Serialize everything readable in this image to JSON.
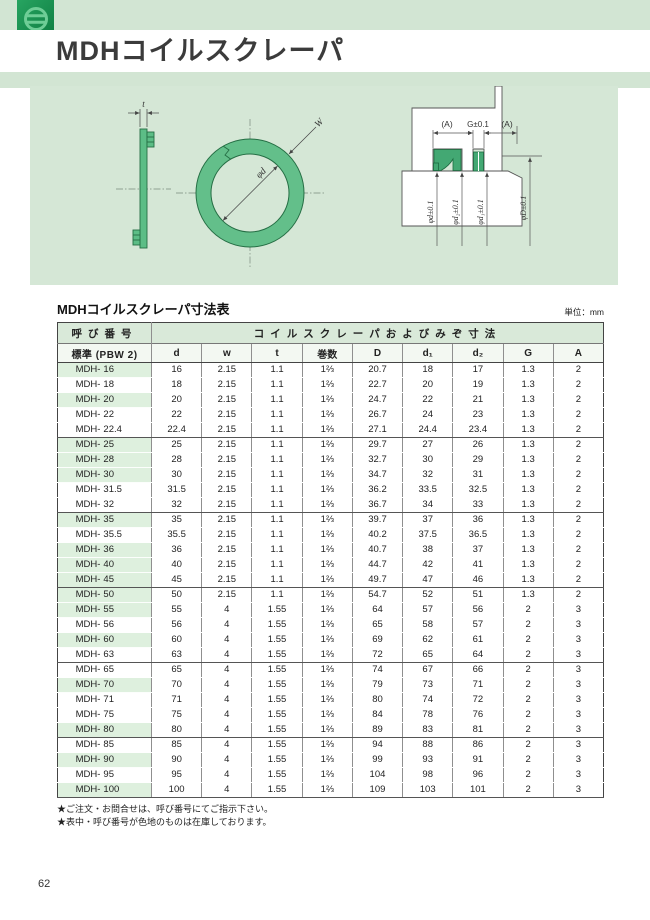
{
  "header": {
    "title": "MDHコイルスクレーパ"
  },
  "diagram": {
    "side_view": {
      "thickness_label": "t"
    },
    "ring_view": {
      "inner_dia_label": "φd",
      "width_label": "W"
    },
    "section_view": {
      "dim_a_left": "(A)",
      "dim_g": "G±0.1",
      "dim_a_right": "(A)",
      "dia_d": "φd±0.1",
      "dia_d2": "φd₂±0.1",
      "dia_d1": "φd₁±0.1",
      "dia_D": "φD±0.1"
    }
  },
  "table": {
    "title": "MDHコイルスクレーパ寸法表",
    "unit": "単位：mm",
    "header_group_left": "呼び番号",
    "header_group_right": "コイルスクレーパおよびみぞ寸法",
    "subheaders": [
      "標準 (PBW 2)",
      "d",
      "w",
      "t",
      "巻数",
      "D",
      "d₁",
      "d₂",
      "G",
      "A"
    ],
    "part_prefix": "MDH-",
    "groups": [
      {
        "rows": [
          {
            "size": "16",
            "stock": true,
            "values": [
              "16",
              "2.15",
              "1.1",
              "1⅔",
              "20.7",
              "18",
              "17",
              "1.3",
              "2"
            ]
          },
          {
            "size": "18",
            "stock": false,
            "values": [
              "18",
              "2.15",
              "1.1",
              "1⅔",
              "22.7",
              "20",
              "19",
              "1.3",
              "2"
            ]
          },
          {
            "size": "20",
            "stock": true,
            "values": [
              "20",
              "2.15",
              "1.1",
              "1⅔",
              "24.7",
              "22",
              "21",
              "1.3",
              "2"
            ]
          },
          {
            "size": "22",
            "stock": false,
            "values": [
              "22",
              "2.15",
              "1.1",
              "1⅔",
              "26.7",
              "24",
              "23",
              "1.3",
              "2"
            ]
          },
          {
            "size": "22.4",
            "stock": false,
            "values": [
              "22.4",
              "2.15",
              "1.1",
              "1⅔",
              "27.1",
              "24.4",
              "23.4",
              "1.3",
              "2"
            ]
          }
        ]
      },
      {
        "rows": [
          {
            "size": "25",
            "stock": true,
            "values": [
              "25",
              "2.15",
              "1.1",
              "1⅔",
              "29.7",
              "27",
              "26",
              "1.3",
              "2"
            ]
          },
          {
            "size": "28",
            "stock": true,
            "values": [
              "28",
              "2.15",
              "1.1",
              "1⅔",
              "32.7",
              "30",
              "29",
              "1.3",
              "2"
            ]
          },
          {
            "size": "30",
            "stock": true,
            "values": [
              "30",
              "2.15",
              "1.1",
              "1⅔",
              "34.7",
              "32",
              "31",
              "1.3",
              "2"
            ]
          },
          {
            "size": "31.5",
            "stock": false,
            "values": [
              "31.5",
              "2.15",
              "1.1",
              "1⅔",
              "36.2",
              "33.5",
              "32.5",
              "1.3",
              "2"
            ]
          },
          {
            "size": "32",
            "stock": false,
            "values": [
              "32",
              "2.15",
              "1.1",
              "1⅔",
              "36.7",
              "34",
              "33",
              "1.3",
              "2"
            ]
          }
        ]
      },
      {
        "rows": [
          {
            "size": "35",
            "stock": true,
            "values": [
              "35",
              "2.15",
              "1.1",
              "1⅔",
              "39.7",
              "37",
              "36",
              "1.3",
              "2"
            ]
          },
          {
            "size": "35.5",
            "stock": false,
            "values": [
              "35.5",
              "2.15",
              "1.1",
              "1⅔",
              "40.2",
              "37.5",
              "36.5",
              "1.3",
              "2"
            ]
          },
          {
            "size": "36",
            "stock": true,
            "values": [
              "36",
              "2.15",
              "1.1",
              "1⅔",
              "40.7",
              "38",
              "37",
              "1.3",
              "2"
            ]
          },
          {
            "size": "40",
            "stock": true,
            "values": [
              "40",
              "2.15",
              "1.1",
              "1⅔",
              "44.7",
              "42",
              "41",
              "1.3",
              "2"
            ]
          },
          {
            "size": "45",
            "stock": true,
            "values": [
              "45",
              "2.15",
              "1.1",
              "1⅔",
              "49.7",
              "47",
              "46",
              "1.3",
              "2"
            ]
          }
        ]
      },
      {
        "rows": [
          {
            "size": "50",
            "stock": true,
            "values": [
              "50",
              "2.15",
              "1.1",
              "1⅔",
              "54.7",
              "52",
              "51",
              "1.3",
              "2"
            ]
          },
          {
            "size": "55",
            "stock": true,
            "values": [
              "55",
              "4",
              "1.55",
              "1⅔",
              "64",
              "57",
              "56",
              "2",
              "3"
            ]
          },
          {
            "size": "56",
            "stock": false,
            "values": [
              "56",
              "4",
              "1.55",
              "1⅔",
              "65",
              "58",
              "57",
              "2",
              "3"
            ]
          },
          {
            "size": "60",
            "stock": true,
            "values": [
              "60",
              "4",
              "1.55",
              "1⅔",
              "69",
              "62",
              "61",
              "2",
              "3"
            ]
          },
          {
            "size": "63",
            "stock": false,
            "values": [
              "63",
              "4",
              "1.55",
              "1⅔",
              "72",
              "65",
              "64",
              "2",
              "3"
            ]
          }
        ]
      },
      {
        "rows": [
          {
            "size": "65",
            "stock": false,
            "values": [
              "65",
              "4",
              "1.55",
              "1⅔",
              "74",
              "67",
              "66",
              "2",
              "3"
            ]
          },
          {
            "size": "70",
            "stock": true,
            "values": [
              "70",
              "4",
              "1.55",
              "1⅔",
              "79",
              "73",
              "71",
              "2",
              "3"
            ]
          },
          {
            "size": "71",
            "stock": false,
            "values": [
              "71",
              "4",
              "1.55",
              "1⅔",
              "80",
              "74",
              "72",
              "2",
              "3"
            ]
          },
          {
            "size": "75",
            "stock": false,
            "values": [
              "75",
              "4",
              "1.55",
              "1⅔",
              "84",
              "78",
              "76",
              "2",
              "3"
            ]
          },
          {
            "size": "80",
            "stock": true,
            "values": [
              "80",
              "4",
              "1.55",
              "1⅔",
              "89",
              "83",
              "81",
              "2",
              "3"
            ]
          }
        ]
      },
      {
        "rows": [
          {
            "size": "85",
            "stock": false,
            "values": [
              "85",
              "4",
              "1.55",
              "1⅔",
              "94",
              "88",
              "86",
              "2",
              "3"
            ]
          },
          {
            "size": "90",
            "stock": true,
            "values": [
              "90",
              "4",
              "1.55",
              "1⅔",
              "99",
              "93",
              "91",
              "2",
              "3"
            ]
          },
          {
            "size": "95",
            "stock": false,
            "values": [
              "95",
              "4",
              "1.55",
              "1⅔",
              "104",
              "98",
              "96",
              "2",
              "3"
            ]
          },
          {
            "size": "100",
            "stock": true,
            "values": [
              "100",
              "4",
              "1.55",
              "1⅔",
              "109",
              "103",
              "101",
              "2",
              "3"
            ]
          }
        ]
      }
    ]
  },
  "notes": [
    "★ご注文・お問合せは、呼び番号にてご指示下さい。",
    "★表中・呼び番号が色地のものは在庫しております。"
  ],
  "page": {
    "number": "62"
  },
  "colors": {
    "strip_green": "#d2e5d3",
    "panel_green": "#d5e7d6",
    "logo_green": "#0e7d41",
    "drawing_green": "#5cbd86",
    "stock_highlight": "#def0de"
  }
}
